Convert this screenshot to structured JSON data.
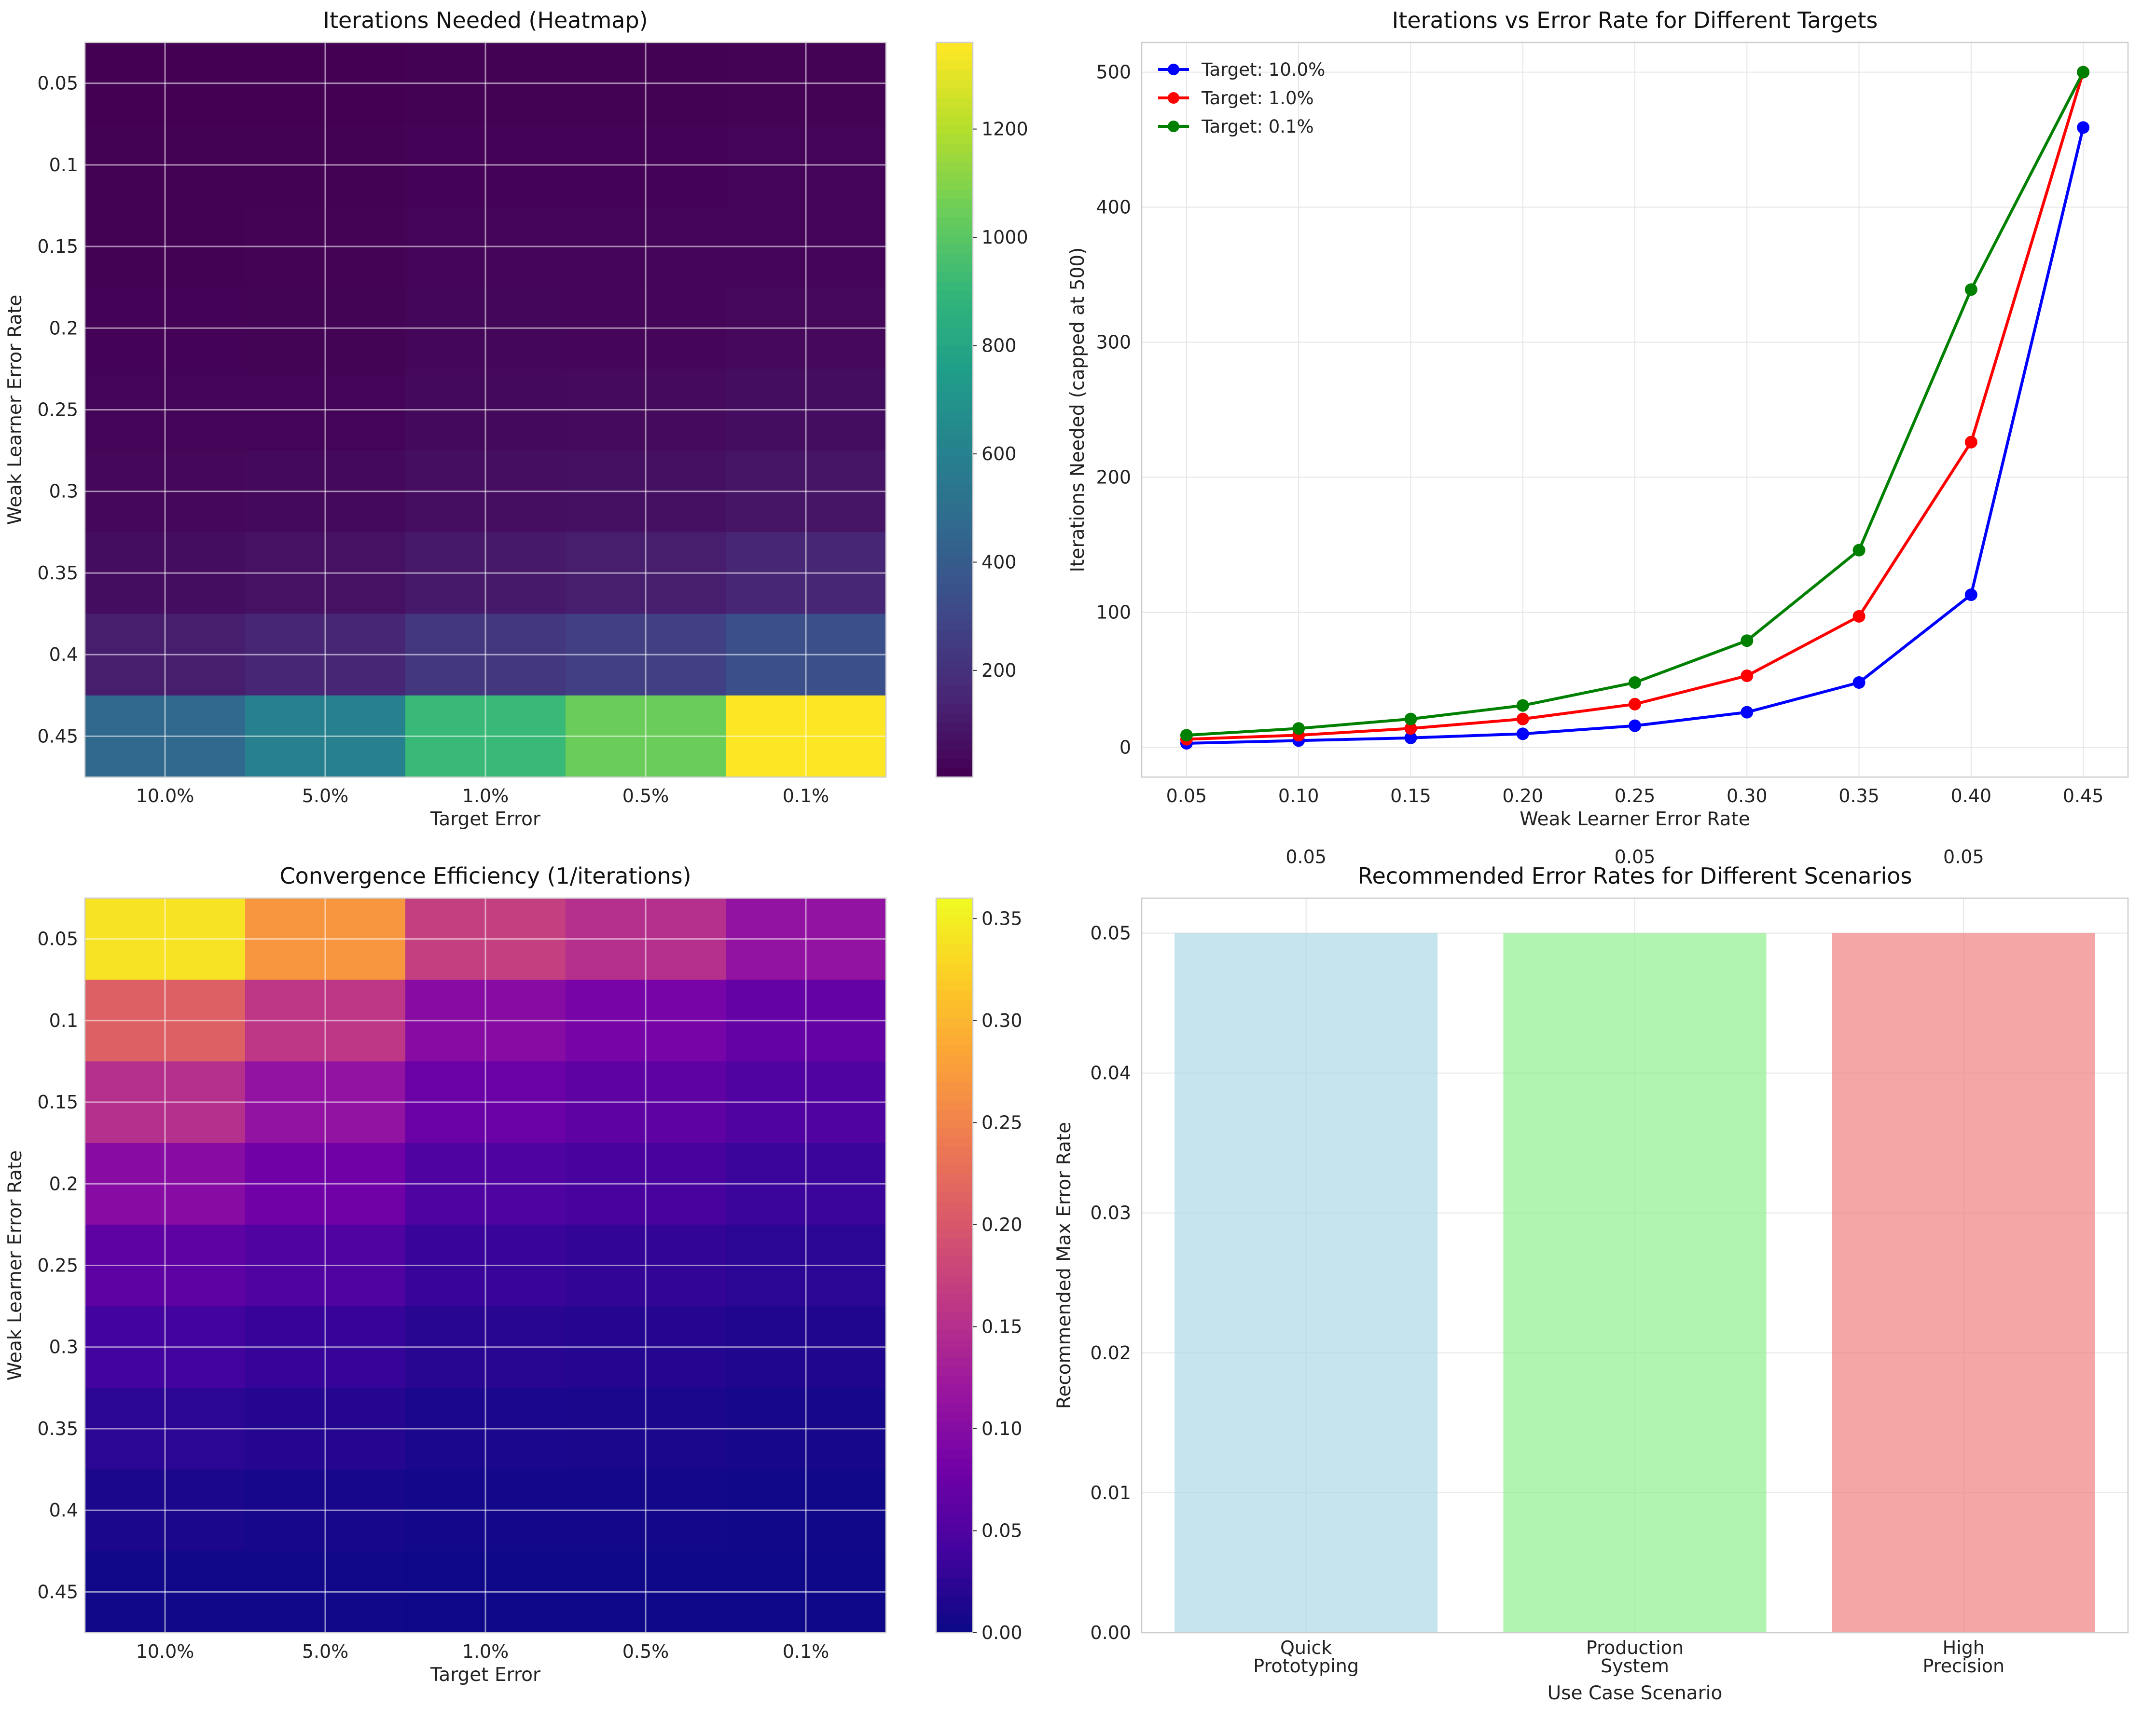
{
  "chart_data": [
    {
      "type": "heatmap",
      "title": "Iterations Needed (Heatmap)",
      "xlabel": "Target Error",
      "ylabel": "Weak Learner Error Rate",
      "x_categories": [
        "10.0%",
        "5.0%",
        "1.0%",
        "0.5%",
        "0.1%"
      ],
      "y_categories": [
        "0.05",
        "0.1",
        "0.15",
        "0.2",
        "0.25",
        "0.3",
        "0.35",
        "0.4",
        "0.45"
      ],
      "colormap": "viridis",
      "color_range": [
        3,
        1360
      ],
      "colorbar_ticks": [
        "200",
        "400",
        "600",
        "800",
        "1000",
        "1200"
      ],
      "colorbar_tick_values": [
        200,
        400,
        600,
        800,
        1000,
        1200
      ],
      "values": [
        [
          3,
          4,
          6,
          7,
          9
        ],
        [
          5,
          7,
          10,
          12,
          15
        ],
        [
          7,
          9,
          14,
          16,
          20
        ],
        [
          10,
          13,
          21,
          24,
          31
        ],
        [
          16,
          20,
          32,
          37,
          48
        ],
        [
          26,
          34,
          53,
          61,
          79
        ],
        [
          48,
          63,
          97,
          113,
          146
        ],
        [
          113,
          147,
          226,
          263,
          339
        ],
        [
          459,
          597,
          918,
          1049,
          1360
        ]
      ]
    },
    {
      "type": "line",
      "title": "Iterations vs Error Rate for Different Targets",
      "xlabel": "Weak Learner Error Rate",
      "ylabel": "Iterations Needed (capped at 500)",
      "x": [
        0.05,
        0.1,
        0.15,
        0.2,
        0.25,
        0.3,
        0.35,
        0.4,
        0.45
      ],
      "xticks": [
        "0.05",
        "0.10",
        "0.15",
        "0.20",
        "0.25",
        "0.30",
        "0.35",
        "0.40",
        "0.45"
      ],
      "yticks": [
        "0",
        "100",
        "200",
        "300",
        "400",
        "500"
      ],
      "xlim": [
        0.03,
        0.47
      ],
      "ylim": [
        -22,
        522
      ],
      "grid": true,
      "legend": "top-left",
      "series": [
        {
          "name": "Target: 10.0%",
          "color": "#0000ff",
          "values": [
            3,
            5,
            7,
            10,
            16,
            26,
            48,
            113,
            459
          ]
        },
        {
          "name": "Target: 1.0%",
          "color": "#ff0000",
          "values": [
            6,
            9,
            14,
            21,
            32,
            53,
            97,
            226,
            500
          ]
        },
        {
          "name": "Target: 0.1%",
          "color": "#008000",
          "values": [
            9,
            14,
            21,
            31,
            48,
            79,
            146,
            339,
            500
          ]
        }
      ]
    },
    {
      "type": "heatmap",
      "title": "Convergence Efficiency (1/iterations)",
      "xlabel": "Target Error",
      "ylabel": "Weak Learner Error Rate",
      "x_categories": [
        "10.0%",
        "5.0%",
        "1.0%",
        "0.5%",
        "0.1%"
      ],
      "y_categories": [
        "0.05",
        "0.1",
        "0.15",
        "0.2",
        "0.25",
        "0.3",
        "0.35",
        "0.4",
        "0.45"
      ],
      "colormap": "plasma",
      "color_range": [
        0,
        0.36
      ],
      "colorbar_ticks": [
        "0.00",
        "0.05",
        "0.10",
        "0.15",
        "0.20",
        "0.25",
        "0.30",
        "0.35"
      ],
      "colorbar_tick_values": [
        0,
        0.05,
        0.1,
        0.15,
        0.2,
        0.25,
        0.3,
        0.35
      ],
      "values": [
        [
          0.34,
          0.27,
          0.17,
          0.15,
          0.11
        ],
        [
          0.21,
          0.16,
          0.1,
          0.085,
          0.068
        ],
        [
          0.15,
          0.11,
          0.072,
          0.062,
          0.049
        ],
        [
          0.1,
          0.077,
          0.048,
          0.042,
          0.032
        ],
        [
          0.063,
          0.05,
          0.031,
          0.027,
          0.021
        ],
        [
          0.038,
          0.029,
          0.019,
          0.016,
          0.013
        ],
        [
          0.021,
          0.016,
          0.01,
          0.009,
          0.007
        ],
        [
          0.009,
          0.007,
          0.004,
          0.004,
          0.003
        ],
        [
          0.002,
          0.002,
          0.001,
          0.001,
          0.001
        ]
      ]
    },
    {
      "type": "bar",
      "title": "Recommended Error Rates for Different Scenarios",
      "xlabel": "Use Case Scenario",
      "ylabel": "Recommended Max Error Rate",
      "categories": [
        [
          "Quick",
          "Prototyping"
        ],
        [
          "Production",
          "System"
        ],
        [
          "High",
          "Precision"
        ]
      ],
      "values": [
        0.05,
        0.05,
        0.05
      ],
      "value_labels": [
        "0.05",
        "0.05",
        "0.05"
      ],
      "colors": [
        "#add8e6",
        "#90ee90",
        "#f08080"
      ],
      "yticks": [
        "0.00",
        "0.01",
        "0.02",
        "0.03",
        "0.04",
        "0.05"
      ],
      "ylim": [
        0,
        0.0525
      ],
      "grid": true
    }
  ]
}
